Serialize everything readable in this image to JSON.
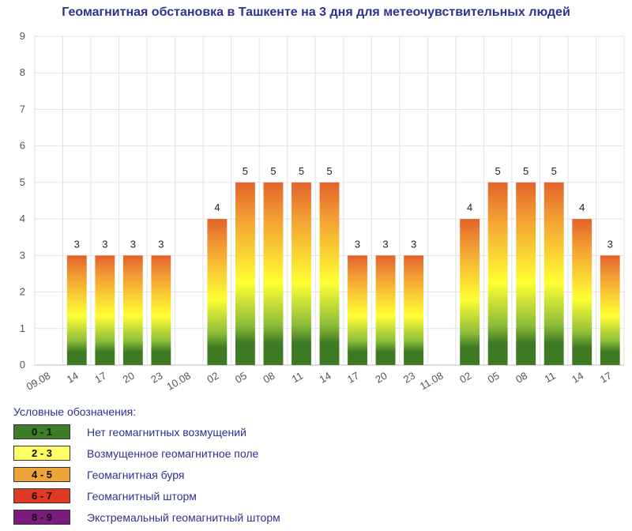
{
  "chart_data": {
    "type": "bar",
    "title": "Геомагнитная обстановка в Ташкенте на 3 дня для метеочувствительных людей",
    "categories": [
      "09.08",
      "14",
      "17",
      "20",
      "23",
      "10.08",
      "02",
      "05",
      "08",
      "11",
      "14",
      "17",
      "20",
      "23",
      "11.08",
      "02",
      "05",
      "08",
      "11",
      "14",
      "17"
    ],
    "values": [
      null,
      3,
      3,
      3,
      3,
      null,
      4,
      5,
      5,
      5,
      5,
      3,
      3,
      3,
      null,
      4,
      5,
      5,
      5,
      4,
      3
    ],
    "ylim": [
      0,
      9
    ],
    "yticks": [
      "0",
      "1",
      "2",
      "3",
      "4",
      "5",
      "6",
      "7",
      "8",
      "9"
    ],
    "grid": true,
    "colors": {
      "low": "#3e7a23",
      "mid": "#ffff33",
      "high": "#e3622a"
    }
  },
  "legend": {
    "title": "Условные обозначения:",
    "items": [
      {
        "range": "0 - 1",
        "label": "Нет геомагнитных возмущений",
        "color": "#3e7d27"
      },
      {
        "range": "2 - 3",
        "label": "Возмущенное геомагнитное поле",
        "color": "#ffff66"
      },
      {
        "range": "4 - 5",
        "label": "Геомагнитная буря",
        "color": "#eda53a"
      },
      {
        "range": "6 - 7",
        "label": "Геомагнитный шторм",
        "color": "#e03a25"
      },
      {
        "range": "8 - 9",
        "label": "Экстремальный геомагнитный шторм",
        "color": "#7b1a7f"
      }
    ]
  }
}
